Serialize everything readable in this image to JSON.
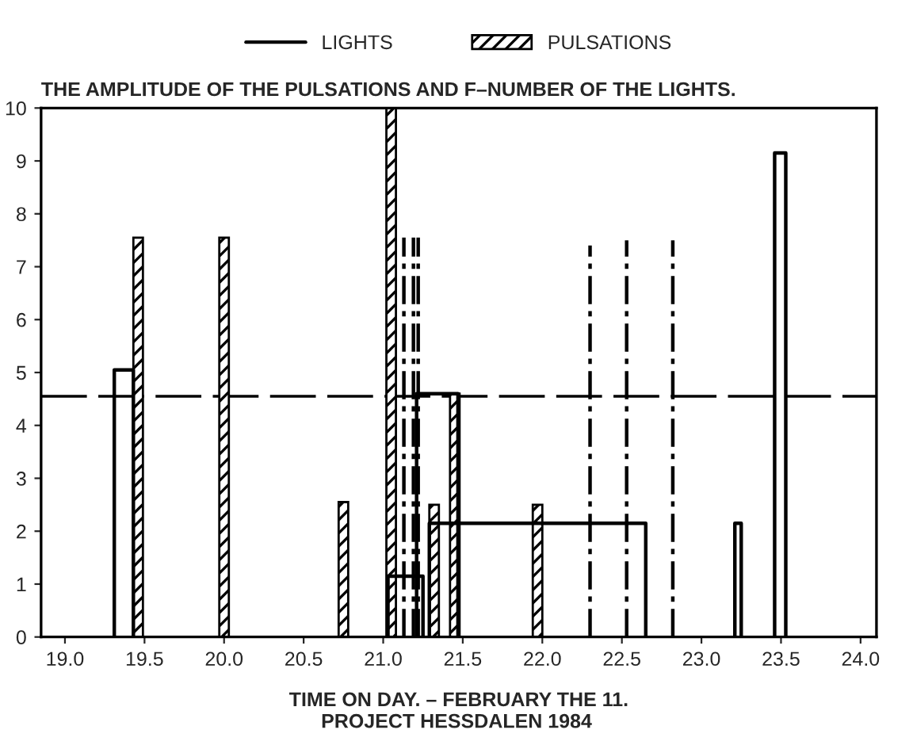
{
  "chart_data": {
    "type": "bar",
    "title": "THE AMPLITUDE OF THE PULSATIONS AND F–NUMBER OF THE LIGHTS.",
    "xlabel": "TIME ON DAY. – FEBRUARY THE 11.",
    "annotations": [
      "PROJECT HESSDALEN 1984"
    ],
    "xlim": [
      18.85,
      24.1
    ],
    "xticks": [
      {
        "value": 19.0,
        "label": "19.0"
      },
      {
        "value": 19.5,
        "label": "19.5"
      },
      {
        "value": 20.0,
        "label": "20.0"
      },
      {
        "value": 20.5,
        "label": "20.5"
      },
      {
        "value": 21.0,
        "label": "21.0"
      },
      {
        "value": 21.5,
        "label": "21.5"
      },
      {
        "value": 22.0,
        "label": "22.0"
      },
      {
        "value": 22.5,
        "label": "22.5"
      },
      {
        "value": 23.0,
        "label": "23.0"
      },
      {
        "value": 23.5,
        "label": "23.5"
      },
      {
        "value": 24.0,
        "label": "24.0"
      }
    ],
    "ylim": [
      0,
      10
    ],
    "yticks": [
      0,
      1,
      2,
      3,
      4,
      5,
      6,
      7,
      8,
      9,
      10
    ],
    "grid": false,
    "legend": "top",
    "series": [
      {
        "name": "LIGHTS",
        "type": "line",
        "line_style": "solid",
        "color": "#000000",
        "x": [
          19.31,
          19.31,
          19.43,
          19.43
        ],
        "values": [
          0,
          5.05,
          5.05,
          0
        ]
      },
      {
        "type": "line",
        "line_style": "solid",
        "color": "#000000",
        "x": [
          21.03,
          21.03,
          21.25,
          21.25
        ],
        "values": [
          0,
          1.15,
          1.15,
          0
        ]
      },
      {
        "type": "line",
        "line_style": "solid",
        "color": "#000000",
        "x": [
          21.21,
          21.21,
          21.47,
          21.47
        ],
        "values": [
          0,
          4.6,
          4.6,
          0
        ]
      },
      {
        "type": "line",
        "line_style": "solid",
        "color": "#000000",
        "x": [
          21.29,
          21.29,
          22.65,
          22.65
        ],
        "values": [
          0,
          2.15,
          2.15,
          0
        ]
      },
      {
        "type": "line",
        "line_style": "solid",
        "color": "#000000",
        "x": [
          23.21,
          23.21,
          23.25,
          23.25
        ],
        "values": [
          0,
          2.15,
          2.15,
          0
        ]
      },
      {
        "type": "line",
        "line_style": "solid",
        "color": "#000000",
        "x": [
          23.46,
          23.46,
          23.53,
          23.53
        ],
        "values": [
          0,
          9.15,
          9.15,
          0
        ]
      },
      {
        "name": "PULSATIONS",
        "color": "#000000",
        "x": [
          19.46,
          20.0,
          20.75,
          21.05,
          21.32,
          21.45,
          21.97
        ],
        "values": [
          7.55,
          7.55,
          2.55,
          10,
          2.5,
          4.6,
          2.5
        ]
      },
      {
        "type": "line",
        "line_style": "dashed",
        "color": "#000000",
        "x": [
          21.13,
          21.13
        ],
        "values": [
          0,
          7.55
        ]
      },
      {
        "type": "line",
        "line_style": "dashed",
        "color": "#000000",
        "x": [
          21.19,
          21.19
        ],
        "values": [
          0,
          7.55
        ]
      },
      {
        "type": "line",
        "line_style": "dashed",
        "color": "#000000",
        "x": [
          21.22,
          21.22
        ],
        "values": [
          0,
          7.55
        ]
      },
      {
        "type": "line",
        "line_style": "dashed",
        "color": "#000000",
        "x": [
          22.3,
          22.3
        ],
        "values": [
          0,
          7.4
        ]
      },
      {
        "type": "line",
        "line_style": "dashed",
        "color": "#000000",
        "x": [
          22.53,
          22.53
        ],
        "values": [
          0,
          7.5
        ]
      },
      {
        "type": "line",
        "line_style": "dashed",
        "color": "#000000",
        "x": [
          22.82,
          22.82
        ],
        "values": [
          0,
          7.5
        ]
      }
    ],
    "ref_lines": [
      {
        "axis": "y",
        "value": 4.55,
        "line_style": "dashed",
        "color": "#000000"
      }
    ]
  }
}
